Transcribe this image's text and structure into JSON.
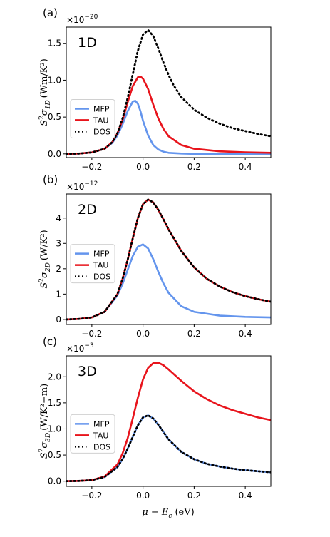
{
  "figure": {
    "xlabel": "μ − E",
    "xlabel_sub": "c",
    "xlabel_unit": "(eV)",
    "legend_entries": [
      "MFP",
      "TAU",
      "DOS"
    ]
  },
  "colors": {
    "MFP": "#6495ED",
    "TAU": "#E8141C",
    "DOS": "#000000"
  },
  "chart_data": [
    {
      "type": "line",
      "panel": "(a)",
      "label": "1D",
      "multiplier": "×10",
      "exponent": "−20",
      "ylabel": {
        "main": "S",
        "sup": "2",
        "sym": "σ",
        "sub": "1D",
        "unit": "(Wm/K²)"
      },
      "xlim": [
        -0.3,
        0.5
      ],
      "ylim": [
        -0.05,
        1.72
      ],
      "xticks": [
        -0.2,
        0.0,
        0.2,
        0.4
      ],
      "yticks": [
        0.0,
        0.5,
        1.0,
        1.5
      ],
      "grid": false,
      "legend": "center-left",
      "series": [
        {
          "name": "MFP",
          "style": "solid",
          "x": [
            -0.3,
            -0.25,
            -0.2,
            -0.15,
            -0.12,
            -0.1,
            -0.08,
            -0.06,
            -0.04,
            -0.03,
            -0.02,
            -0.01,
            0.0,
            0.02,
            0.04,
            0.06,
            0.08,
            0.1,
            0.15,
            0.2,
            0.3,
            0.4,
            0.5
          ],
          "y": [
            0.0,
            0.005,
            0.02,
            0.07,
            0.15,
            0.25,
            0.4,
            0.58,
            0.71,
            0.72,
            0.68,
            0.58,
            0.45,
            0.25,
            0.12,
            0.06,
            0.03,
            0.015,
            0.005,
            0.0,
            0.0,
            0.0,
            0.0
          ]
        },
        {
          "name": "TAU",
          "style": "solid",
          "x": [
            -0.3,
            -0.25,
            -0.2,
            -0.15,
            -0.12,
            -0.1,
            -0.08,
            -0.06,
            -0.04,
            -0.02,
            -0.01,
            0.0,
            0.02,
            0.04,
            0.06,
            0.08,
            0.1,
            0.15,
            0.2,
            0.3,
            0.4,
            0.5
          ],
          "y": [
            0.0,
            0.005,
            0.02,
            0.07,
            0.16,
            0.28,
            0.46,
            0.7,
            0.92,
            1.04,
            1.05,
            1.02,
            0.88,
            0.67,
            0.48,
            0.34,
            0.24,
            0.12,
            0.07,
            0.035,
            0.022,
            0.015
          ]
        },
        {
          "name": "DOS",
          "style": "dotted",
          "x": [
            -0.3,
            -0.25,
            -0.2,
            -0.15,
            -0.12,
            -0.1,
            -0.08,
            -0.06,
            -0.04,
            -0.02,
            0.0,
            0.02,
            0.04,
            0.06,
            0.08,
            0.1,
            0.12,
            0.15,
            0.2,
            0.25,
            0.3,
            0.35,
            0.4,
            0.45,
            0.5
          ],
          "y": [
            0.0,
            0.005,
            0.02,
            0.07,
            0.16,
            0.28,
            0.48,
            0.76,
            1.08,
            1.4,
            1.62,
            1.68,
            1.6,
            1.43,
            1.24,
            1.07,
            0.93,
            0.77,
            0.6,
            0.49,
            0.41,
            0.35,
            0.31,
            0.27,
            0.24
          ]
        }
      ]
    },
    {
      "type": "line",
      "panel": "(b)",
      "label": "2D",
      "multiplier": "×10",
      "exponent": "−12",
      "ylabel": {
        "main": "S",
        "sup": "2",
        "sym": "σ",
        "sub": "2D",
        "unit": "(W/K²)"
      },
      "xlim": [
        -0.3,
        0.5
      ],
      "ylim": [
        -0.2,
        4.95
      ],
      "xticks": [
        -0.2,
        0.0,
        0.2,
        0.4
      ],
      "yticks": [
        0,
        1,
        2,
        3,
        4
      ],
      "grid": false,
      "legend": "center-left",
      "series": [
        {
          "name": "MFP",
          "style": "solid",
          "x": [
            -0.3,
            -0.25,
            -0.2,
            -0.15,
            -0.1,
            -0.08,
            -0.06,
            -0.04,
            -0.02,
            0.0,
            0.02,
            0.04,
            0.06,
            0.08,
            0.1,
            0.15,
            0.2,
            0.3,
            0.4,
            0.5
          ],
          "y": [
            0.0,
            0.02,
            0.08,
            0.3,
            0.95,
            1.4,
            1.95,
            2.5,
            2.87,
            2.96,
            2.8,
            2.38,
            1.88,
            1.42,
            1.05,
            0.52,
            0.3,
            0.15,
            0.1,
            0.08
          ]
        },
        {
          "name": "TAU",
          "style": "solid",
          "x": [
            -0.3,
            -0.25,
            -0.2,
            -0.15,
            -0.1,
            -0.08,
            -0.06,
            -0.04,
            -0.02,
            0.0,
            0.02,
            0.04,
            0.06,
            0.08,
            0.1,
            0.15,
            0.2,
            0.25,
            0.3,
            0.35,
            0.4,
            0.45,
            0.5
          ],
          "y": [
            0.0,
            0.02,
            0.08,
            0.3,
            1.0,
            1.6,
            2.35,
            3.2,
            4.0,
            4.55,
            4.73,
            4.62,
            4.32,
            3.95,
            3.55,
            2.7,
            2.05,
            1.6,
            1.3,
            1.08,
            0.92,
            0.8,
            0.7
          ]
        },
        {
          "name": "DOS",
          "style": "dotted",
          "x": [
            -0.3,
            -0.25,
            -0.2,
            -0.15,
            -0.1,
            -0.08,
            -0.06,
            -0.04,
            -0.02,
            0.0,
            0.02,
            0.04,
            0.06,
            0.08,
            0.1,
            0.15,
            0.2,
            0.25,
            0.3,
            0.35,
            0.4,
            0.45,
            0.5
          ],
          "y": [
            0.0,
            0.02,
            0.08,
            0.3,
            1.0,
            1.6,
            2.35,
            3.2,
            4.0,
            4.55,
            4.73,
            4.62,
            4.32,
            3.95,
            3.55,
            2.7,
            2.05,
            1.6,
            1.3,
            1.08,
            0.92,
            0.8,
            0.7
          ]
        }
      ]
    },
    {
      "type": "line",
      "panel": "(c)",
      "label": "3D",
      "multiplier": "×10",
      "exponent": "−3",
      "ylabel": {
        "main": "S",
        "sup": "2",
        "sym": "σ",
        "sub": "3D",
        "unit": "(W/K²−m)"
      },
      "xlim": [
        -0.3,
        0.5
      ],
      "ylim": [
        -0.1,
        2.4
      ],
      "xticks": [
        -0.2,
        0.0,
        0.2,
        0.4
      ],
      "yticks": [
        0.0,
        0.5,
        1.0,
        1.5,
        2.0
      ],
      "grid": false,
      "legend": "center-left",
      "series": [
        {
          "name": "MFP",
          "style": "solid",
          "x": [
            -0.3,
            -0.25,
            -0.2,
            -0.15,
            -0.1,
            -0.08,
            -0.06,
            -0.04,
            -0.02,
            0.0,
            0.02,
            0.04,
            0.06,
            0.08,
            0.1,
            0.15,
            0.2,
            0.25,
            0.3,
            0.35,
            0.4,
            0.45,
            0.5
          ],
          "y": [
            0.0,
            0.005,
            0.02,
            0.08,
            0.27,
            0.42,
            0.62,
            0.85,
            1.07,
            1.22,
            1.26,
            1.2,
            1.08,
            0.94,
            0.8,
            0.56,
            0.42,
            0.33,
            0.28,
            0.24,
            0.21,
            0.19,
            0.17
          ]
        },
        {
          "name": "TAU",
          "style": "solid",
          "x": [
            -0.3,
            -0.25,
            -0.2,
            -0.15,
            -0.1,
            -0.08,
            -0.06,
            -0.04,
            -0.02,
            0.0,
            0.02,
            0.04,
            0.06,
            0.08,
            0.1,
            0.15,
            0.2,
            0.25,
            0.3,
            0.35,
            0.4,
            0.45,
            0.5
          ],
          "y": [
            0.0,
            0.005,
            0.02,
            0.09,
            0.32,
            0.53,
            0.82,
            1.2,
            1.6,
            1.95,
            2.17,
            2.26,
            2.27,
            2.22,
            2.14,
            1.92,
            1.72,
            1.57,
            1.45,
            1.36,
            1.29,
            1.22,
            1.17
          ]
        },
        {
          "name": "DOS",
          "style": "dotted",
          "x": [
            -0.3,
            -0.25,
            -0.2,
            -0.15,
            -0.1,
            -0.08,
            -0.06,
            -0.04,
            -0.02,
            0.0,
            0.02,
            0.04,
            0.06,
            0.08,
            0.1,
            0.15,
            0.2,
            0.25,
            0.3,
            0.35,
            0.4,
            0.45,
            0.5
          ],
          "y": [
            0.0,
            0.005,
            0.02,
            0.08,
            0.27,
            0.42,
            0.62,
            0.85,
            1.07,
            1.22,
            1.26,
            1.2,
            1.08,
            0.94,
            0.8,
            0.56,
            0.42,
            0.33,
            0.28,
            0.24,
            0.21,
            0.19,
            0.17
          ]
        }
      ]
    }
  ]
}
